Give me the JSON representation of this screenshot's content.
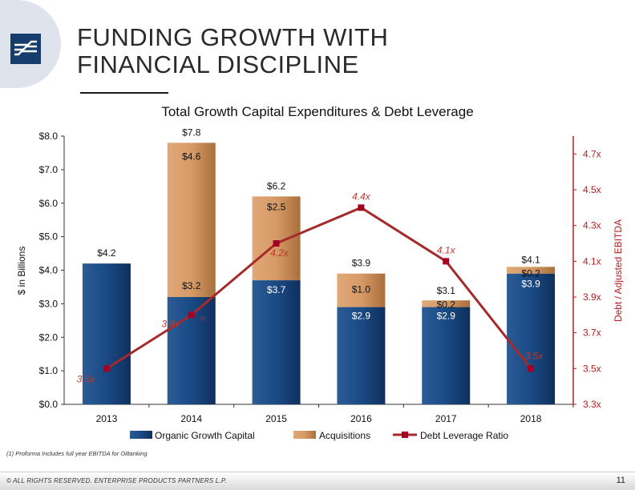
{
  "slide": {
    "title_line1": "FUNDING GROWTH WITH",
    "title_line2": "FINANCIAL DISCIPLINE",
    "footnote": "(1)  Proforma Includes full year EBITDA for Oiltanking",
    "footer": "© ALL RIGHTS RESERVED. ENTERPRISE PRODUCTS PARTNERS L.P.",
    "page_number": "11",
    "logo_icon": "enterprise-logo-icon"
  },
  "chart_data": {
    "type": "bar",
    "stacked": true,
    "title": "Total Growth Capital Expenditures & Debt Leverage",
    "categories": [
      "2013",
      "2014",
      "2015",
      "2016",
      "2017",
      "2018"
    ],
    "series": [
      {
        "name": "Organic Growth Capital",
        "values": [
          4.2,
          3.2,
          3.7,
          2.9,
          2.9,
          3.9
        ],
        "labels": [
          "$4.2",
          "$3.2",
          "$3.7",
          "$2.9",
          "$2.9",
          "$3.9"
        ],
        "color": "#1f4e86"
      },
      {
        "name": "Acquisitions",
        "values": [
          0,
          4.6,
          2.5,
          1.0,
          0.2,
          0.2
        ],
        "labels": [
          "",
          "$4.6",
          "$2.5",
          "$1.0",
          "$0.2",
          "$0.2"
        ],
        "color": "#c98f5a"
      }
    ],
    "totals": [
      "",
      "$7.8",
      "$6.2",
      "$3.9",
      "$3.1",
      "$4.1"
    ],
    "line": {
      "name": "Debt Leverage Ratio",
      "axis": "right",
      "values": [
        3.5,
        3.8,
        4.2,
        4.4,
        4.1,
        3.5
      ],
      "labels": [
        "3.5x",
        "3.8x",
        "4.2x",
        "4.4x",
        "4.1x",
        "3.5x"
      ],
      "superscript_index": 1,
      "superscript": "(1)",
      "color": "#a52a2a"
    },
    "ylabel": "$ in Billions",
    "ylim": [
      0,
      8
    ],
    "yticks": [
      "$0.0",
      "$1.0",
      "$2.0",
      "$3.0",
      "$4.0",
      "$5.0",
      "$6.0",
      "$7.0",
      "$8.0"
    ],
    "y2label": "Debt / Adjusted EBITDA",
    "y2lim": [
      3.3,
      4.8
    ],
    "y2ticks": [
      3.3,
      3.5,
      3.7,
      3.9,
      4.1,
      4.3,
      4.5,
      4.7
    ],
    "y2tick_labels": [
      "3.3x",
      "3.5x",
      "3.7x",
      "3.9x",
      "4.1x",
      "4.3x",
      "4.5x",
      "4.7x"
    ],
    "legend": "bottom",
    "grid": false
  }
}
